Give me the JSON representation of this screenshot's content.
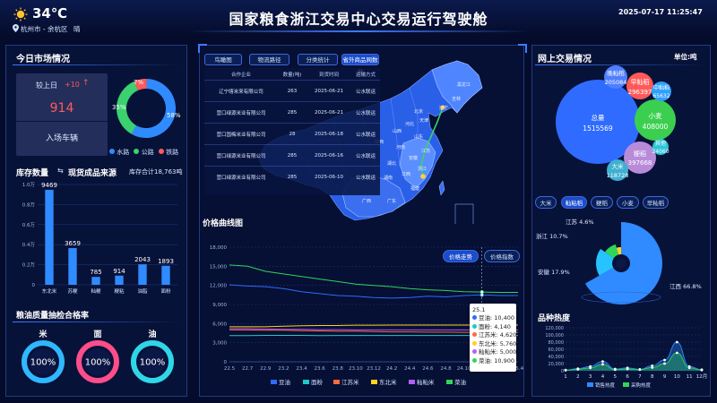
{
  "header": {
    "title": "国家粮食浙江交易中心交易运行驾驶舱",
    "weather_temp": "34℃",
    "location": "杭州市 - 余杭区",
    "weather_desc": "晴",
    "datetime": "2025-07-17 11:25:47"
  },
  "market": {
    "title": "今日市场情况",
    "compare_label": "较上日",
    "compare_value": "+10",
    "vehicles": "914",
    "vehicles_label": "入场车辆",
    "donut": [
      {
        "name": "水路",
        "pct": "58%",
        "value": 58,
        "color": "#2f8bff"
      },
      {
        "name": "公路",
        "pct": "35%",
        "value": 35,
        "color": "#3bd16f"
      },
      {
        "name": "铁路",
        "pct": "7%",
        "value": 7,
        "color": "#ff5a5a"
      }
    ]
  },
  "inventory": {
    "title": "库存数量",
    "subtitle": "现货成品来源",
    "total_label": "库存合计18,763吨",
    "chart_data": {
      "type": "bar",
      "categories": [
        "东北米",
        "苏粳",
        "籼粳",
        "粳粘",
        "油脂",
        "面粉"
      ],
      "values": [
        9469,
        3659,
        785,
        914,
        2043,
        1893
      ],
      "value_labels": [
        "9469",
        "3659",
        "785",
        "914",
        "2043",
        "1893"
      ],
      "ylim": [
        0,
        10000
      ],
      "yticks": [
        "0",
        "0.2万",
        "0.4万",
        "0.6万",
        "0.8万",
        "1.0万"
      ],
      "grid": true
    }
  },
  "quality": {
    "title": "粮油质量抽检合格率",
    "items": [
      {
        "name": "米",
        "pct": "100%",
        "color": "#2fb7ff"
      },
      {
        "name": "面",
        "pct": "100%",
        "color": "#ff4d8a"
      },
      {
        "name": "油",
        "pct": "100%",
        "color": "#2fd6e8"
      }
    ]
  },
  "center": {
    "tabs": [
      "鸟瞰图",
      "物流路径",
      "分类统计",
      "省外商品网数据"
    ],
    "table": {
      "headers": [
        "合作企业",
        "数量(吨)",
        "到货时间",
        "运输方式"
      ],
      "rows": [
        [
          "辽宁喀米来有限公司",
          "263",
          "2025-06-21",
          "公水联运"
        ],
        [
          "营口绿源米业有限公司",
          "285",
          "2025-06-21",
          "公水联运"
        ],
        [
          "营口国梅米业有限公司",
          "28",
          "2025-06-18",
          "公水联运"
        ],
        [
          "营口绿源米业有限公司",
          "285",
          "2025-06-16",
          "公水联运"
        ],
        [
          "营口绿源米业有限公司",
          "285",
          "2025-06-10",
          "公水联运"
        ]
      ]
    },
    "map_labels": [
      "黑龙江",
      "吉林",
      "辽宁",
      "北京",
      "天津",
      "河北",
      "山西",
      "陕西",
      "河南",
      "山东",
      "安徽",
      "江苏",
      "湖北",
      "湖南",
      "江西",
      "浙江",
      "福建",
      "广东",
      "广西"
    ]
  },
  "price": {
    "title": "价格曲线图",
    "btn_trend": "价格走势",
    "btn_index": "价格指数",
    "chart_data": {
      "type": "line",
      "x": [
        "22.5",
        "22.7",
        "22.9",
        "23.2",
        "23.4",
        "23.6",
        "23.8",
        "23.10",
        "23.12",
        "24.2",
        "24.4",
        "24.6",
        "24.8",
        "24.10",
        "24.12",
        "25.2",
        "25.4"
      ],
      "ylim": [
        0,
        18000
      ],
      "yticks": [
        "0",
        "3,000",
        "6,000",
        "9,000",
        "12,000",
        "15,000",
        "18,000"
      ],
      "grid": true,
      "series": [
        {
          "name": "豆油",
          "color": "#2f6bff",
          "values": [
            12100,
            11900,
            11800,
            11500,
            11000,
            10700,
            10400,
            10300,
            10100,
            10000,
            10100,
            10300,
            10200,
            10400,
            10500,
            10400,
            10400
          ]
        },
        {
          "name": "面粉",
          "color": "#1fc8c8",
          "values": [
            4100,
            4100,
            4150,
            4150,
            4150,
            4120,
            4140,
            4140,
            4140,
            4140,
            4140,
            4140,
            4140,
            4140,
            4140,
            4140,
            4140
          ]
        },
        {
          "name": "江苏米",
          "color": "#ff6b3d",
          "values": [
            5000,
            5000,
            4950,
            4950,
            4900,
            4850,
            4800,
            4800,
            4750,
            4700,
            4700,
            4650,
            4650,
            4620,
            4620,
            4620,
            4620
          ]
        },
        {
          "name": "东北米",
          "color": "#ffd21f",
          "values": [
            5500,
            5500,
            5500,
            5600,
            5650,
            5700,
            5700,
            5750,
            5750,
            5760,
            5760,
            5760,
            5760,
            5760,
            5760,
            5760,
            5760
          ]
        },
        {
          "name": "籼籼米",
          "color": "#b35cff",
          "values": [
            5200,
            5200,
            5150,
            5100,
            5100,
            5050,
            5050,
            5000,
            5000,
            5000,
            5000,
            5000,
            5000,
            5000,
            5000,
            5000,
            5000
          ]
        },
        {
          "name": "菜油",
          "color": "#2fd65a",
          "values": [
            15200,
            15000,
            14200,
            13800,
            13400,
            13000,
            12600,
            12200,
            12000,
            11800,
            11500,
            11300,
            11200,
            11000,
            10950,
            10900,
            10900
          ]
        }
      ]
    },
    "tooltip": {
      "title": "25.1",
      "items": [
        {
          "name": "豆油",
          "value": "10,400",
          "color": "#2f6bff"
        },
        {
          "name": "面粉",
          "value": "4,140",
          "color": "#1fc8c8"
        },
        {
          "name": "江苏米",
          "value": "4,620",
          "color": "#ff6b3d"
        },
        {
          "name": "东北米",
          "value": "5,760",
          "color": "#ffd21f"
        },
        {
          "name": "籼籼米",
          "value": "5,000",
          "color": "#b35cff"
        },
        {
          "name": "菜油",
          "value": "10,900",
          "color": "#2fd65a"
        }
      ]
    }
  },
  "online": {
    "title": "网上交易情况",
    "unit": "单位:吨",
    "bubbles": [
      {
        "name": "总量",
        "value": "1515569",
        "color": "#2f6bff"
      },
      {
        "name": "小麦",
        "value": "408000",
        "color": "#3bcf4f"
      },
      {
        "name": "早籼稻",
        "value": "296397",
        "color": "#ff5a5a"
      },
      {
        "name": "粳稻",
        "value": "397668",
        "color": "#b88bd9"
      },
      {
        "name": "晚籼稻",
        "value": "205084",
        "color": "#4f7fff"
      },
      {
        "name": "中籼稻",
        "value": "65632",
        "color": "#2fa0ff"
      },
      {
        "name": "大米",
        "value": "118728",
        "color": "#3fb0d0"
      },
      {
        "name": "其他",
        "value": "24060",
        "color": "#2fc5d8"
      }
    ],
    "tabs": [
      "大米",
      "籼粘稻",
      "粳稻",
      "小麦",
      "早籼稻"
    ],
    "active_tab": 1,
    "rose": [
      {
        "name": "江西",
        "pct": "66.8%",
        "value": 66.8,
        "color": "#2f8bff"
      },
      {
        "name": "安徽",
        "pct": "17.9%",
        "value": 17.9,
        "color": "#27c3ff"
      },
      {
        "name": "浙江",
        "pct": "10.7%",
        "value": 10.7,
        "color": "#2fd65a"
      },
      {
        "name": "江苏",
        "pct": "4.6%",
        "value": 4.6,
        "color": "#ffd21f"
      }
    ]
  },
  "heat": {
    "title": "品种热度",
    "legend": [
      "销售热度",
      "采购热度"
    ],
    "chart_data": {
      "type": "area",
      "x": [
        "1",
        "2",
        "3",
        "4",
        "5",
        "6",
        "7",
        "8",
        "9",
        "10",
        "11",
        "12月"
      ],
      "ylim": [
        0,
        120000
      ],
      "yticks": [
        "0",
        "20,000",
        "40,000",
        "60,000",
        "80,000",
        "100,000",
        "120,000"
      ],
      "series": [
        {
          "name": "销售热度",
          "color": "#2f8bff",
          "values": [
            2000,
            6000,
            12000,
            26000,
            5000,
            8000,
            4000,
            14000,
            30000,
            80000,
            12000,
            3000
          ]
        },
        {
          "name": "采购热度",
          "color": "#2fd65a",
          "values": [
            1500,
            4000,
            8000,
            18000,
            3000,
            5000,
            3000,
            9000,
            20000,
            50000,
            8000,
            2000
          ]
        }
      ]
    }
  }
}
